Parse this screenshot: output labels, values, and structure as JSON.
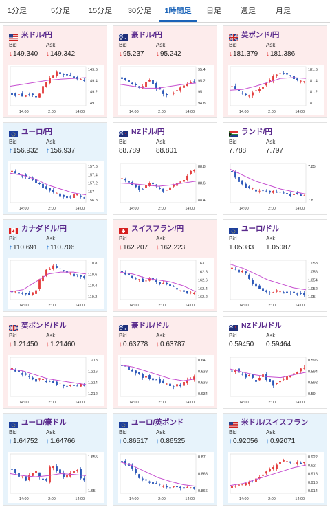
{
  "tabs": [
    "1分足",
    "5分足",
    "15分足",
    "30分足",
    "1時間足",
    "日足",
    "週足",
    "月足"
  ],
  "active_tab": "1時間足",
  "labels": {
    "bid": "Bid",
    "ask": "Ask"
  },
  "cards": [
    {
      "pair": "米ドル/円",
      "flag": "us",
      "dir": "down",
      "bid": "149.340",
      "ask": "149.342",
      "ticks": [
        "149.6",
        "149.4",
        "149.2",
        "149"
      ],
      "x_ticks": [
        "14:00",
        "2:00",
        "14:00"
      ]
    },
    {
      "pair": "豪ドル/円",
      "flag": "au",
      "dir": "down",
      "bid": "95.237",
      "ask": "95.242",
      "ticks": [
        "95.4",
        "95.2",
        "95",
        "94.8"
      ],
      "x_ticks": [
        "14:00",
        "2:00",
        "14:00"
      ]
    },
    {
      "pair": "英ポンド/円",
      "flag": "gb",
      "dir": "down",
      "bid": "181.379",
      "ask": "181.386",
      "ticks": [
        "181.6",
        "181.4",
        "181.2",
        "181"
      ],
      "x_ticks": [
        "14:00",
        "2:00",
        "14:00"
      ]
    },
    {
      "pair": "ユーロ/円",
      "flag": "eu",
      "dir": "up",
      "bid": "156.932",
      "ask": "156.937",
      "ticks": [
        "157.6",
        "157.4",
        "157.2",
        "157",
        "156.8"
      ],
      "x_ticks": [
        "14:00",
        "2:00",
        "14:00"
      ]
    },
    {
      "pair": "NZドル/円",
      "flag": "nz",
      "dir": "none",
      "bid": "88.789",
      "ask": "88.801",
      "ticks": [
        "88.8",
        "88.6",
        "88.4"
      ],
      "x_ticks": [
        "14:00",
        "2:00",
        "14:00"
      ]
    },
    {
      "pair": "ランド/円",
      "flag": "za",
      "dir": "none",
      "bid": "7.788",
      "ask": "7.797",
      "ticks": [
        "7.85",
        "7.8"
      ],
      "x_ticks": [
        "14:00",
        "2:00",
        "14:00"
      ]
    },
    {
      "pair": "カナダドル/円",
      "flag": "ca",
      "dir": "up",
      "bid": "110.691",
      "ask": "110.706",
      "ticks": [
        "110.8",
        "110.6",
        "110.4",
        "110.2"
      ],
      "x_ticks": [
        "14:00",
        "2:00",
        "14:00"
      ]
    },
    {
      "pair": "スイスフラン/円",
      "flag": "ch",
      "dir": "down",
      "bid": "162.207",
      "ask": "162.223",
      "ticks": [
        "163",
        "162.8",
        "162.6",
        "162.4",
        "162.2"
      ],
      "x_ticks": [
        "14:00",
        "2:00",
        "14:00"
      ]
    },
    {
      "pair": "ユーロ/ドル",
      "flag": "eu",
      "dir": "none",
      "bid": "1.05083",
      "ask": "1.05087",
      "ticks": [
        "1.058",
        "1.056",
        "1.054",
        "1.052",
        "1.05"
      ],
      "x_ticks": [
        "14:00",
        "2:00",
        "14:00"
      ]
    },
    {
      "pair": "英ポンド/ドル",
      "flag": "gb",
      "dir": "down",
      "bid": "1.21450",
      "ask": "1.21460",
      "ticks": [
        "1.218",
        "1.216",
        "1.214",
        "1.212"
      ],
      "x_ticks": [
        "14:00",
        "2:00",
        "14:00"
      ]
    },
    {
      "pair": "豪ドル/ドル",
      "flag": "au",
      "dir": "down",
      "bid": "0.63778",
      "ask": "0.63787",
      "ticks": [
        "0.64",
        "0.638",
        "0.636",
        "0.634"
      ],
      "x_ticks": [
        "14:00",
        "2:00",
        "14:00"
      ]
    },
    {
      "pair": "NZドル/ドル",
      "flag": "nz",
      "dir": "none",
      "bid": "0.59450",
      "ask": "0.59464",
      "ticks": [
        "0.596",
        "0.594",
        "0.592",
        "0.59"
      ],
      "x_ticks": [
        "14:00",
        "2:00",
        "14:00"
      ]
    },
    {
      "pair": "ユーロ/豪ドル",
      "flag": "eu",
      "dir": "up",
      "bid": "1.64752",
      "ask": "1.64766",
      "ticks": [
        "1.655",
        "1.65"
      ],
      "x_ticks": [
        "14:00",
        "2:00",
        "14:00"
      ]
    },
    {
      "pair": "ユーロ/英ポンド",
      "flag": "eu",
      "dir": "up",
      "bid": "0.86517",
      "ask": "0.86525",
      "ticks": [
        "0.87",
        "0.868",
        "0.866"
      ],
      "x_ticks": [
        "14:00",
        "2:00",
        "14:00"
      ]
    },
    {
      "pair": "米ドル/スイスフラン",
      "flag": "us",
      "dir": "up",
      "bid": "0.92056",
      "ask": "0.92071",
      "ticks": [
        "0.922",
        "0.92",
        "0.918",
        "0.916",
        "0.914"
      ],
      "x_ticks": [
        "14:00",
        "2:00",
        "14:00"
      ]
    }
  ],
  "colors": {
    "candle_up": "#e33b3b",
    "candle_down": "#2a56b8",
    "moving_average": "#c64fd0",
    "accent": "#1a63b8"
  }
}
